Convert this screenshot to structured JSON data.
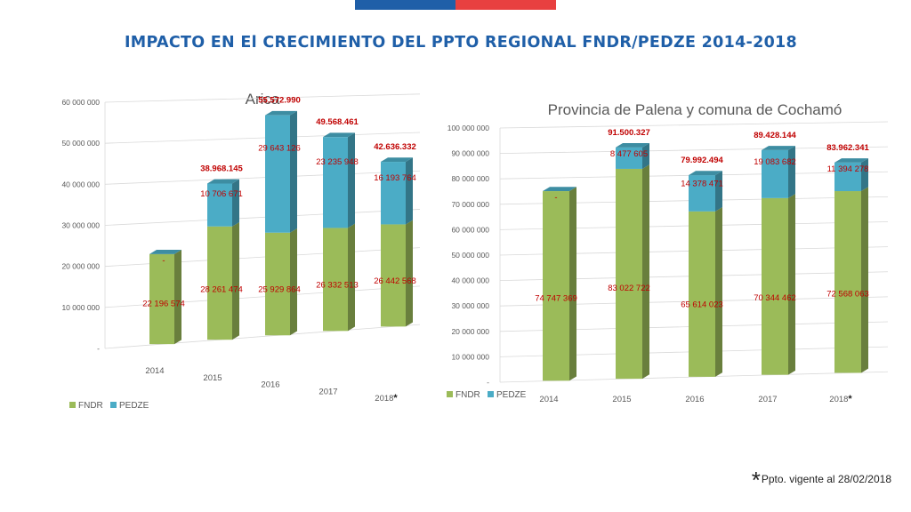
{
  "header": {
    "title": "IMPACTO EN El CRECIMIENTO DEL PPTO REGIONAL FNDR/PEDZE 2014-2018"
  },
  "footnote": {
    "star": "*",
    "text": "Ppto. vigente al 28/02/2018"
  },
  "colors": {
    "fndr": "#9bbb59",
    "pedze": "#4bacc6",
    "title": "#1f5fa8",
    "value_labels": "#c00000",
    "flag_blue": "#1f5fa8",
    "flag_red": "#e84040"
  },
  "chart_data": [
    {
      "type": "bar",
      "stacked": true,
      "three_d": true,
      "title": "Arica",
      "categories": [
        "2014",
        "2015",
        "2016",
        "2017",
        "2018"
      ],
      "category_marks": [
        "",
        "",
        "",
        "",
        "*"
      ],
      "ylim": [
        0,
        60000000
      ],
      "yticks": [
        0,
        10000000,
        20000000,
        30000000,
        40000000,
        50000000,
        60000000
      ],
      "ytick_labels": [
        "-",
        "10 000 000",
        "20 000 000",
        "30 000 000",
        "40 000 000",
        "50 000 000",
        "60 000 000"
      ],
      "grid": true,
      "legend_position": "bottom-left",
      "series": [
        {
          "name": "FNDR",
          "values": [
            22196574,
            28261474,
            25929864,
            26332513,
            26442568
          ],
          "labels": [
            "22 196 574",
            "28 261 474",
            "25 929 864",
            "26 332 513",
            "26 442 568"
          ]
        },
        {
          "name": "PEDZE",
          "values": [
            0,
            10706671,
            29643126,
            23235948,
            16193764
          ],
          "labels": [
            "-",
            "10 706 671",
            "29 643 126",
            "23 235 948",
            "16 193 764"
          ]
        }
      ],
      "totals": [
        "",
        "38.968.145",
        "55.572.990",
        "49.568.461",
        "42.636.332"
      ]
    },
    {
      "type": "bar",
      "stacked": true,
      "three_d": true,
      "title": "Provincia de Palena y comuna de Cochamó",
      "categories": [
        "2014",
        "2015",
        "2016",
        "2017",
        "2018"
      ],
      "category_marks": [
        "",
        "",
        "",
        "",
        "*"
      ],
      "ylim": [
        0,
        100000000
      ],
      "yticks": [
        0,
        10000000,
        20000000,
        30000000,
        40000000,
        50000000,
        60000000,
        70000000,
        80000000,
        90000000,
        100000000
      ],
      "ytick_labels": [
        "-",
        "10 000 000",
        "20 000 000",
        "30 000 000",
        "40 000 000",
        "50 000 000",
        "60 000 000",
        "70 000 000",
        "80 000 000",
        "90 000 000",
        "100 000 000"
      ],
      "grid": true,
      "legend_position": "bottom-left",
      "series": [
        {
          "name": "FNDR",
          "values": [
            74747369,
            83022722,
            65614023,
            70344462,
            72568063
          ],
          "labels": [
            "74 747 369",
            "83 022 722",
            "65 614 023",
            "70 344 462",
            "72 568 063"
          ]
        },
        {
          "name": "PEDZE",
          "values": [
            0,
            8477605,
            14378471,
            19083682,
            11394278
          ],
          "labels": [
            "-",
            "8 477 605",
            "14 378 471",
            "19 083 682",
            "11 394 278"
          ]
        }
      ],
      "totals": [
        "",
        "91.500.327",
        "79.992.494",
        "89.428.144",
        "83.962.341"
      ]
    }
  ]
}
